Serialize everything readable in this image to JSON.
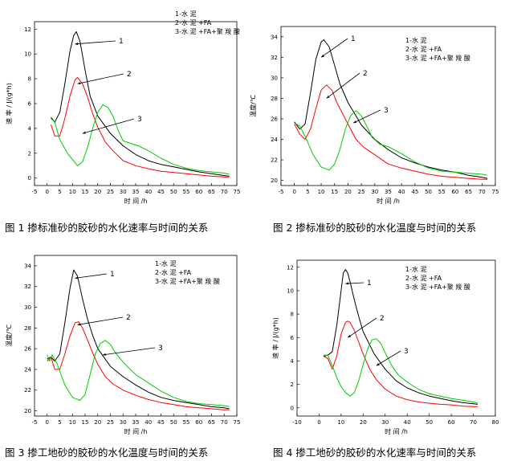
{
  "chart_data": [
    {
      "type": "line",
      "title": "",
      "caption": "图 1 掺标准砂的胶砂的水化速率与时间的关系",
      "xlabel": "时 间 /h",
      "ylabel": "速 率 / J/(g*h)",
      "xlim": [
        -5,
        75
      ],
      "ylim": [
        -0.6,
        12.6
      ],
      "xticks": [
        "-5",
        "0",
        "5",
        "10",
        "15",
        "20",
        "25",
        "30",
        "35",
        "40",
        "45",
        "50",
        "55",
        "60",
        "65",
        "70",
        "75"
      ],
      "yticks": [
        "0",
        "2",
        "4",
        "6",
        "8",
        "10",
        "12"
      ],
      "legend": [
        "1-水 泥",
        "2-水 泥 +FA",
        "3-水 泥 +FA+聚 羧 酸"
      ],
      "series": [
        {
          "name": "1",
          "color": "#000000",
          "x": [
            1.5,
            3,
            5,
            7,
            9,
            10.5,
            11.5,
            13,
            15,
            17,
            20,
            25,
            30,
            35,
            40,
            45,
            50,
            55,
            60,
            65,
            70,
            72
          ],
          "y": [
            4.9,
            4.5,
            5.3,
            7.6,
            10.2,
            11.5,
            11.8,
            11.0,
            8.7,
            6.6,
            5.0,
            3.6,
            2.6,
            1.9,
            1.4,
            1.1,
            0.9,
            0.7,
            0.5,
            0.35,
            0.2,
            0.15
          ]
        },
        {
          "name": "2",
          "color": "#ff0000",
          "x": [
            1.5,
            3,
            5,
            7,
            9,
            11,
            12,
            14,
            16,
            18,
            20,
            23,
            26,
            30,
            35,
            40,
            45,
            50,
            55,
            60,
            65,
            70,
            72
          ],
          "y": [
            4.3,
            3.4,
            3.4,
            4.8,
            6.6,
            7.9,
            8.1,
            7.6,
            6.5,
            5.2,
            4.1,
            2.9,
            2.2,
            1.4,
            1.0,
            0.75,
            0.55,
            0.45,
            0.35,
            0.25,
            0.15,
            0.1,
            0.05
          ]
        },
        {
          "name": "3",
          "color": "#00cc00",
          "x": [
            1.5,
            3,
            5,
            8,
            10,
            12,
            14,
            16,
            18,
            20,
            22,
            24,
            26,
            28,
            30,
            33,
            36,
            40,
            45,
            50,
            55,
            60,
            65,
            70,
            72
          ],
          "y": [
            4.8,
            4.5,
            3.1,
            2.0,
            1.5,
            1.0,
            1.3,
            2.5,
            4.0,
            5.3,
            5.9,
            5.7,
            5.0,
            3.9,
            3.0,
            2.8,
            2.6,
            2.2,
            1.6,
            1.1,
            0.8,
            0.6,
            0.5,
            0.4,
            0.3
          ]
        }
      ],
      "annotations": [
        {
          "text": "1",
          "series": "1",
          "point_x": 11,
          "point_y": 10.8
        },
        {
          "text": "2",
          "series": "2",
          "point_x": 12,
          "point_y": 7.6
        },
        {
          "text": "3",
          "series": "3",
          "point_x": 14,
          "point_y": 3.6
        }
      ]
    },
    {
      "type": "line",
      "title": "",
      "caption": "图 2 掺标准砂的胶砂的水化温度与时间的关系",
      "xlabel": "时 间 /h",
      "ylabel": "温度/℃",
      "xlim": [
        -5,
        75
      ],
      "ylim": [
        19.5,
        35
      ],
      "xticks": [
        "-5",
        "0",
        "5",
        "10",
        "15",
        "20",
        "25",
        "30",
        "35",
        "40",
        "45",
        "50",
        "55",
        "60",
        "65",
        "70",
        "75"
      ],
      "yticks": [
        "20",
        "22",
        "24",
        "26",
        "28",
        "30",
        "32",
        "34"
      ],
      "legend": [
        "1-水 泥",
        "2-水 泥 +FA",
        "3-水 泥 +FA+聚 羧 酸"
      ],
      "series": [
        {
          "name": "1",
          "color": "#000000",
          "x": [
            0,
            2,
            4,
            6,
            8,
            10,
            11,
            13,
            15,
            17,
            20,
            25,
            30,
            35,
            40,
            45,
            50,
            55,
            60,
            65,
            70,
            72
          ],
          "y": [
            25.7,
            25.0,
            25.5,
            28.5,
            31.8,
            33.5,
            33.7,
            33.0,
            31.2,
            29.4,
            27.6,
            25.4,
            24.0,
            23.0,
            22.2,
            21.7,
            21.3,
            21.0,
            20.8,
            20.5,
            20.3,
            20.2
          ]
        },
        {
          "name": "2",
          "color": "#ff0000",
          "x": [
            0,
            2,
            4,
            6,
            8,
            10,
            12,
            14,
            16,
            18,
            20,
            23,
            26,
            30,
            35,
            40,
            45,
            50,
            55,
            60,
            65,
            70,
            72
          ],
          "y": [
            25.5,
            24.5,
            24.0,
            25.0,
            27.0,
            28.8,
            29.3,
            28.8,
            27.5,
            26.5,
            25.5,
            24.0,
            23.2,
            22.5,
            21.6,
            21.2,
            20.9,
            20.6,
            20.4,
            20.3,
            20.2,
            20.1,
            20.1
          ]
        },
        {
          "name": "3",
          "color": "#00cc00",
          "x": [
            0,
            2,
            4,
            7,
            10,
            13,
            15,
            17,
            19,
            21,
            23,
            25,
            27,
            29,
            32,
            35,
            40,
            45,
            50,
            55,
            60,
            65,
            70,
            72
          ],
          "y": [
            25.6,
            25.3,
            24.3,
            22.5,
            21.3,
            21.0,
            21.6,
            23.0,
            25.0,
            26.3,
            26.8,
            26.3,
            25.3,
            24.2,
            23.5,
            23.3,
            22.6,
            21.8,
            21.2,
            20.9,
            20.8,
            20.7,
            20.6,
            20.5
          ]
        }
      ],
      "annotations": [
        {
          "text": "1",
          "series": "1",
          "point_x": 10,
          "point_y": 32.0
        },
        {
          "text": "2",
          "series": "2",
          "point_x": 12,
          "point_y": 28.0
        },
        {
          "text": "3",
          "series": "3",
          "point_x": 22,
          "point_y": 25.6
        }
      ]
    },
    {
      "type": "line",
      "title": "",
      "caption": "图 3 掺工地砂的胶砂的水化温度与时间的关系",
      "xlabel": "时 间 /h",
      "ylabel": "温度/℃",
      "xlim": [
        -5,
        75
      ],
      "ylim": [
        19.5,
        35
      ],
      "xticks": [
        "-5",
        "0",
        "5",
        "10",
        "15",
        "20",
        "25",
        "30",
        "35",
        "40",
        "45",
        "50",
        "55",
        "60",
        "65",
        "70",
        "75"
      ],
      "yticks": [
        "20",
        "22",
        "24",
        "26",
        "28",
        "30",
        "32",
        "34"
      ],
      "legend": [
        "1-水 泥",
        "2-水 泥 +FA",
        "3-水 泥 +FA+聚 羧 酸"
      ],
      "series": [
        {
          "name": "1",
          "color": "#000000",
          "x": [
            0,
            1.5,
            3,
            5,
            7,
            9,
            10.5,
            12,
            14,
            16,
            18,
            20,
            25,
            30,
            35,
            40,
            45,
            50,
            55,
            60,
            65,
            70,
            72
          ],
          "y": [
            25.0,
            25.2,
            24.8,
            25.5,
            28.5,
            31.8,
            33.6,
            33.0,
            30.8,
            28.8,
            27.3,
            26.0,
            24.3,
            23.3,
            22.5,
            21.8,
            21.3,
            21.0,
            20.8,
            20.6,
            20.4,
            20.3,
            20.2
          ]
        },
        {
          "name": "2",
          "color": "#ff0000",
          "x": [
            0,
            1.5,
            3,
            5,
            7,
            9,
            11,
            12.5,
            14,
            16,
            18,
            20,
            23,
            26,
            30,
            35,
            40,
            45,
            50,
            55,
            60,
            65,
            70,
            72
          ],
          "y": [
            24.8,
            25.2,
            24.0,
            24.0,
            25.5,
            27.2,
            28.5,
            28.6,
            28.0,
            26.8,
            25.6,
            24.5,
            23.3,
            22.6,
            22.0,
            21.5,
            21.1,
            20.8,
            20.6,
            20.4,
            20.3,
            20.2,
            20.1,
            20.1
          ]
        },
        {
          "name": "3",
          "color": "#00cc00",
          "x": [
            0,
            1,
            2,
            4,
            7,
            10,
            13,
            15,
            17,
            19,
            21,
            23,
            25,
            27,
            29,
            32,
            35,
            40,
            45,
            50,
            55,
            60,
            65,
            70,
            72
          ],
          "y": [
            25.4,
            24.8,
            25.4,
            24.5,
            22.5,
            21.3,
            21.0,
            21.6,
            23.5,
            25.5,
            26.5,
            26.8,
            26.4,
            25.6,
            25.0,
            24.2,
            23.5,
            22.7,
            21.9,
            21.3,
            20.9,
            20.7,
            20.6,
            20.5,
            20.4
          ]
        }
      ],
      "annotations": [
        {
          "text": "1",
          "series": "1",
          "point_x": 11,
          "point_y": 32.8
        },
        {
          "text": "2",
          "series": "2",
          "point_x": 12,
          "point_y": 28.3
        },
        {
          "text": "3",
          "series": "3",
          "point_x": 22,
          "point_y": 25.4
        }
      ]
    },
    {
      "type": "line",
      "title": "",
      "caption": "图 4 掺工地砂的胶砂的水化速率与时间的关系",
      "xlabel": "时 间 /h",
      "ylabel": "速 率 / J/(g*h)",
      "xlim": [
        -10,
        80
      ],
      "ylim": [
        -0.7,
        12.6
      ],
      "xticks": [
        "-10",
        "0",
        "10",
        "20",
        "30",
        "40",
        "50",
        "60",
        "70",
        "80"
      ],
      "yticks": [
        "0",
        "2",
        "4",
        "6",
        "8",
        "10",
        "12"
      ],
      "legend": [
        "1-水 泥",
        "2-水 泥 +FA",
        "3-水 泥 +FA+聚 羧 酸"
      ],
      "series": [
        {
          "name": "1",
          "color": "#000000",
          "x": [
            2,
            4,
            6,
            8,
            10,
            11,
            12,
            13,
            14,
            16,
            18,
            20,
            25,
            30,
            35,
            40,
            45,
            50,
            55,
            60,
            65,
            70,
            72
          ],
          "y": [
            4.4,
            4.5,
            4.8,
            7.0,
            10.0,
            11.5,
            11.8,
            11.5,
            10.8,
            9.2,
            7.8,
            6.5,
            4.6,
            3.3,
            2.3,
            1.7,
            1.3,
            1.0,
            0.8,
            0.6,
            0.45,
            0.35,
            0.3
          ]
        },
        {
          "name": "2",
          "color": "#ff0000",
          "x": [
            2,
            4,
            6,
            8,
            10,
            12,
            13,
            14,
            16,
            18,
            20,
            23,
            26,
            30,
            35,
            40,
            45,
            50,
            55,
            60,
            65,
            70,
            72
          ],
          "y": [
            4.4,
            4.2,
            3.3,
            4.4,
            6.3,
            7.3,
            7.4,
            7.3,
            6.6,
            5.6,
            4.6,
            3.3,
            2.4,
            1.6,
            1.0,
            0.7,
            0.5,
            0.4,
            0.3,
            0.25,
            0.15,
            0.1,
            0.1
          ]
        },
        {
          "name": "3",
          "color": "#00cc00",
          "x": [
            2,
            4,
            6,
            8,
            10,
            12,
            14,
            16,
            18,
            20,
            22,
            24,
            26,
            28,
            30,
            33,
            36,
            40,
            45,
            50,
            55,
            60,
            65,
            70,
            72
          ],
          "y": [
            4.5,
            4.5,
            3.6,
            2.6,
            1.8,
            1.3,
            1.0,
            1.3,
            2.3,
            3.7,
            5.0,
            5.8,
            5.9,
            5.5,
            4.7,
            3.6,
            2.8,
            2.2,
            1.6,
            1.2,
            1.0,
            0.8,
            0.65,
            0.5,
            0.4
          ]
        }
      ],
      "annotations": [
        {
          "text": "1",
          "series": "1",
          "point_x": 12,
          "point_y": 10.6
        },
        {
          "text": "2",
          "series": "2",
          "point_x": 13,
          "point_y": 6.0
        },
        {
          "text": "3",
          "series": "3",
          "point_x": 26,
          "point_y": 3.6
        }
      ]
    }
  ]
}
